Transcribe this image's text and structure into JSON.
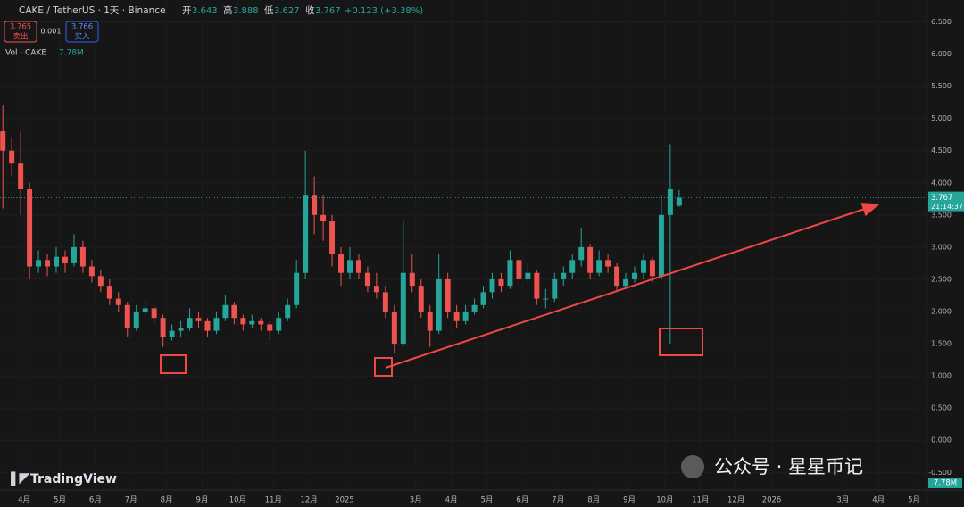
{
  "chart_data": {
    "type": "candlestick",
    "title": "CAKE / TetherUS · 1天 · Binance",
    "ohlc_labels": [
      "开",
      "高",
      "低",
      "收"
    ],
    "change": "+0.123 (+3.38%)",
    "up_color": "#26a69a",
    "down_color": "#ef5350",
    "x": [
      3.4,
      3.65,
      3.9,
      4.15,
      4.4,
      4.65,
      4.9,
      5.15,
      5.4,
      5.65,
      5.9,
      6.15,
      6.4,
      6.65,
      6.9,
      7.15,
      7.4,
      7.65,
      7.9,
      8.15,
      8.4,
      8.65,
      8.9,
      9.15,
      9.4,
      9.65,
      9.9,
      10.15,
      10.4,
      10.65,
      10.9,
      11.15,
      11.4,
      11.65,
      11.9,
      12.15,
      12.4,
      12.65,
      12.9,
      13.15,
      13.4,
      13.65,
      13.9,
      14.15,
      14.4,
      14.65,
      14.9,
      15.15,
      15.4,
      15.65,
      15.9,
      16.15,
      16.4,
      16.65,
      16.9,
      17.15,
      17.4,
      17.65,
      17.9,
      18.15,
      18.4,
      18.65,
      18.9,
      19.15,
      19.4,
      19.65,
      19.9,
      20.15,
      20.4,
      20.65,
      20.9,
      21.15,
      21.4,
      21.65,
      21.9,
      22.15,
      22.4
    ],
    "open": [
      4.8,
      4.5,
      4.3,
      3.9,
      2.7,
      2.8,
      2.7,
      2.85,
      2.75,
      3.0,
      2.7,
      2.55,
      2.4,
      2.2,
      2.1,
      1.75,
      2.0,
      2.05,
      1.9,
      1.6,
      1.7,
      1.75,
      1.9,
      1.85,
      1.7,
      1.9,
      2.1,
      1.9,
      1.8,
      1.85,
      1.8,
      1.7,
      1.9,
      2.1,
      2.6,
      3.8,
      3.5,
      3.4,
      2.9,
      2.6,
      2.8,
      2.6,
      2.4,
      2.3,
      2.0,
      1.5,
      2.6,
      2.4,
      2.0,
      1.7,
      2.5,
      2.0,
      1.85,
      2.0,
      2.1,
      2.3,
      2.5,
      2.4,
      2.8,
      2.5,
      2.6,
      2.2,
      2.2,
      2.5,
      2.6,
      2.8,
      3.0,
      2.6,
      2.8,
      2.7,
      2.4,
      2.5,
      2.6,
      2.8,
      2.55,
      3.5,
      3.643
    ],
    "high": [
      5.2,
      4.7,
      4.8,
      4.0,
      2.95,
      2.9,
      3.0,
      2.95,
      3.2,
      3.1,
      2.8,
      2.65,
      2.5,
      2.3,
      2.15,
      2.1,
      2.15,
      2.1,
      1.95,
      1.8,
      1.85,
      2.05,
      2.0,
      1.9,
      2.0,
      2.25,
      2.15,
      1.95,
      1.95,
      1.9,
      1.85,
      2.0,
      2.2,
      2.8,
      4.5,
      4.1,
      3.8,
      3.5,
      3.0,
      3.0,
      2.9,
      2.7,
      2.6,
      2.4,
      2.1,
      3.4,
      2.9,
      2.5,
      2.1,
      2.9,
      2.6,
      2.1,
      2.1,
      2.2,
      2.4,
      2.6,
      2.6,
      2.95,
      2.85,
      2.75,
      2.65,
      2.35,
      2.6,
      2.7,
      2.9,
      3.3,
      3.05,
      2.95,
      2.9,
      2.75,
      2.6,
      2.7,
      2.9,
      2.85,
      3.8,
      4.6,
      3.888
    ],
    "low": [
      3.6,
      4.1,
      3.5,
      2.5,
      2.6,
      2.55,
      2.6,
      2.6,
      2.7,
      2.6,
      2.45,
      2.3,
      2.1,
      2.0,
      1.6,
      1.7,
      1.95,
      1.8,
      1.45,
      1.55,
      1.6,
      1.7,
      1.75,
      1.6,
      1.65,
      1.85,
      1.8,
      1.7,
      1.75,
      1.7,
      1.55,
      1.65,
      1.85,
      2.05,
      2.5,
      3.2,
      3.1,
      2.7,
      2.4,
      2.5,
      2.5,
      2.3,
      2.2,
      1.9,
      1.35,
      1.45,
      2.3,
      1.9,
      1.45,
      1.65,
      1.9,
      1.75,
      1.8,
      1.95,
      2.05,
      2.2,
      2.3,
      2.35,
      2.4,
      2.45,
      2.1,
      2.05,
      2.15,
      2.4,
      2.5,
      2.7,
      2.5,
      2.55,
      2.6,
      2.3,
      2.35,
      2.45,
      2.5,
      2.45,
      2.5,
      1.5,
      3.627
    ],
    "close": [
      4.5,
      4.3,
      3.9,
      2.7,
      2.8,
      2.7,
      2.85,
      2.75,
      3.0,
      2.7,
      2.55,
      2.4,
      2.2,
      2.1,
      1.75,
      2.0,
      2.05,
      1.9,
      1.6,
      1.7,
      1.75,
      1.9,
      1.85,
      1.7,
      1.9,
      2.1,
      1.9,
      1.8,
      1.85,
      1.8,
      1.7,
      1.9,
      2.1,
      2.6,
      3.8,
      3.5,
      3.4,
      2.9,
      2.6,
      2.8,
      2.6,
      2.4,
      2.3,
      2.0,
      1.5,
      2.6,
      2.4,
      2.0,
      1.7,
      2.5,
      2.0,
      1.85,
      2.0,
      2.1,
      2.3,
      2.5,
      2.4,
      2.8,
      2.5,
      2.6,
      2.2,
      2.2,
      2.5,
      2.6,
      2.8,
      3.0,
      2.6,
      2.8,
      2.7,
      2.4,
      2.5,
      2.6,
      2.8,
      2.55,
      3.5,
      3.9,
      3.767
    ],
    "xlim": [
      3.32,
      29.35
    ],
    "xticks": [
      {
        "value": 4,
        "label": "4月"
      },
      {
        "value": 5,
        "label": "5月"
      },
      {
        "value": 6,
        "label": "6月"
      },
      {
        "value": 7,
        "label": "7月"
      },
      {
        "value": 8,
        "label": "8月"
      },
      {
        "value": 9,
        "label": "9月"
      },
      {
        "value": 10,
        "label": "10月"
      },
      {
        "value": 11,
        "label": "11月"
      },
      {
        "value": 12,
        "label": "12月"
      },
      {
        "value": 13,
        "label": "2025"
      },
      {
        "value": 15,
        "label": "3月"
      },
      {
        "value": 16,
        "label": "4月"
      },
      {
        "value": 17,
        "label": "5月"
      },
      {
        "value": 18,
        "label": "6月"
      },
      {
        "value": 19,
        "label": "7月"
      },
      {
        "value": 20,
        "label": "8月"
      },
      {
        "value": 21,
        "label": "9月"
      },
      {
        "value": 22,
        "label": "10月"
      },
      {
        "value": 23,
        "label": "11月"
      },
      {
        "value": 24,
        "label": "12月"
      },
      {
        "value": 25,
        "label": "2026"
      },
      {
        "value": 27,
        "label": "3月"
      },
      {
        "value": 28,
        "label": "4月"
      },
      {
        "value": 29,
        "label": "5月"
      }
    ],
    "ylim": [
      -0.76,
      6.84
    ],
    "yticks": [
      {
        "value": -0.5,
        "label": "-0.500"
      },
      {
        "value": 0,
        "label": "0.000"
      },
      {
        "value": 0.5,
        "label": "0.500"
      },
      {
        "value": 1,
        "label": "1.000"
      },
      {
        "value": 1.5,
        "label": "1.500"
      },
      {
        "value": 2,
        "label": "2.000"
      },
      {
        "value": 2.5,
        "label": "2.500"
      },
      {
        "value": 3,
        "label": "3.000"
      },
      {
        "value": 3.5,
        "label": "3.500"
      },
      {
        "value": 4,
        "label": "4.000"
      },
      {
        "value": 4.5,
        "label": "4.500"
      },
      {
        "value": 5,
        "label": "5.000"
      },
      {
        "value": 5.5,
        "label": "5.500"
      },
      {
        "value": 6,
        "label": "6.000"
      },
      {
        "value": 6.5,
        "label": "6.500"
      }
    ],
    "grid": true,
    "countdown": "21:14:37"
  },
  "toolbar": {
    "sell_price": "3.765",
    "sell_label": "卖出",
    "spread": "0.001",
    "buy_price": "3.766",
    "buy_label": "买入",
    "volume_title": "Vol · CAKE",
    "volume_value": "7.78M",
    "volume_axis_label": "7.78M"
  },
  "branding": {
    "logo": "TradingView",
    "watermark": "公众号 · 星星币记"
  }
}
